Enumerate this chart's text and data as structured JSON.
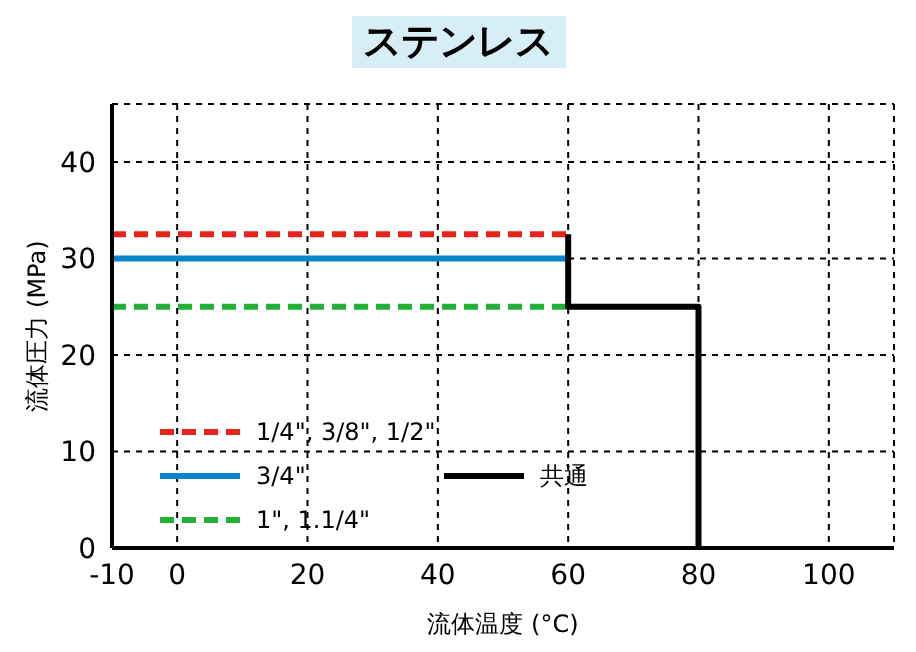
{
  "chart_data": {
    "type": "line",
    "title": "ステンレス",
    "xlabel": "流体温度 (°C)",
    "ylabel": "流体圧力 (MPa)",
    "xlim": [
      -10,
      110
    ],
    "xticks": [
      -10,
      0,
      20,
      40,
      60,
      80,
      100
    ],
    "ylim": [
      0,
      46
    ],
    "yticks": [
      0,
      10,
      20,
      30,
      40
    ],
    "grid": true,
    "legend": "bottom left",
    "marker": "none",
    "series": [
      {
        "name": "1/4\", 3/8\", 1/2\"",
        "color": "#e8231b",
        "line_style": "dashed",
        "x": [
          -10,
          60
        ],
        "values": [
          32.5,
          32.5
        ]
      },
      {
        "name": "3/4\"",
        "color": "#0a84c8",
        "line_style": "solid",
        "x": [
          -10,
          60
        ],
        "values": [
          30,
          30
        ]
      },
      {
        "name": "1\", 1.1/4\"",
        "color": "#22b035",
        "line_style": "dashed",
        "x": [
          -10,
          60
        ],
        "values": [
          25,
          25
        ]
      },
      {
        "name": "共通",
        "color": "#000000",
        "line_style": "solid",
        "x": [
          60,
          60,
          80,
          80
        ],
        "values": [
          32.5,
          25,
          25,
          0
        ]
      }
    ]
  }
}
